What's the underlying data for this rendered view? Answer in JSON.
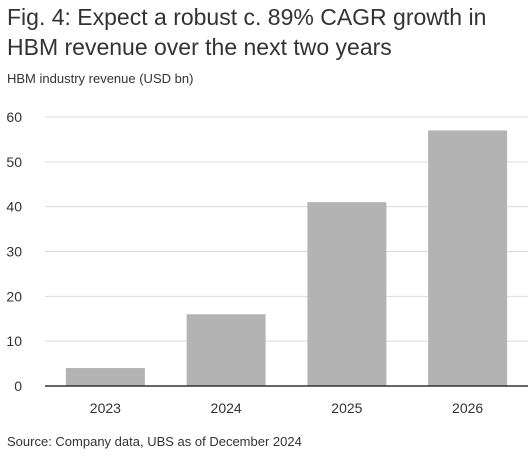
{
  "title": "Fig. 4: Expect a robust c. 89% CAGR growth in HBM revenue over the next two years",
  "subtitle": "HBM industry revenue (USD bn)",
  "source": "Source: Company data, UBS as of December 2024",
  "colors": {
    "bar": "#b3b3b3",
    "grid": "#dcdcdc",
    "axis": "#333333",
    "text": "#333333"
  },
  "chart_data": {
    "type": "bar",
    "title": "Fig. 4: Expect a robust c. 89% CAGR growth in HBM revenue over the next two years",
    "subtitle": "HBM industry revenue (USD bn)",
    "categories": [
      "2023",
      "2024",
      "2025",
      "2026"
    ],
    "values": [
      4,
      16,
      41,
      57
    ],
    "ylim": [
      0,
      60
    ],
    "yticks": [
      "0",
      "10",
      "20",
      "30",
      "40",
      "50",
      "60"
    ],
    "ytick_values": [
      0,
      10,
      20,
      30,
      40,
      50,
      60
    ],
    "grid": true,
    "legend": "none"
  }
}
